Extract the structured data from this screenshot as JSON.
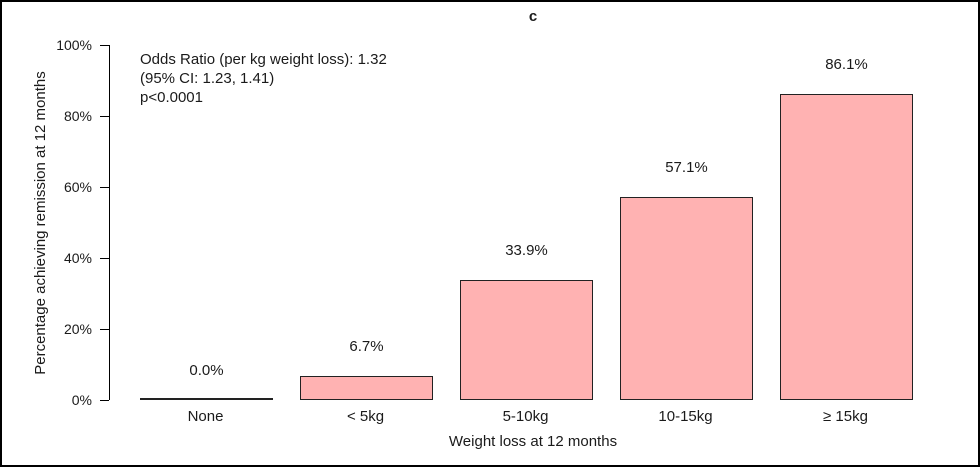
{
  "chart_data": {
    "type": "bar",
    "title": "c",
    "categories": [
      "None",
      "< 5kg",
      "5-10kg",
      "10-15kg",
      "≥ 15kg"
    ],
    "values": [
      0.0,
      6.7,
      33.9,
      57.1,
      86.1
    ],
    "value_labels": [
      "0.0%",
      "6.7%",
      "33.9%",
      "57.1%",
      "86.1%"
    ],
    "xlabel": "Weight loss at 12 months",
    "ylabel": "Percentage achieving remission at 12 months",
    "ylim": [
      0,
      100
    ],
    "yticks": [
      0,
      20,
      40,
      60,
      80,
      100
    ],
    "ytick_labels": [
      "0%",
      "20%",
      "40%",
      "60%",
      "80%",
      "100%"
    ],
    "grid": false,
    "legend": false,
    "annotations": [
      "Odds Ratio (per kg weight loss): 1.32",
      "(95% CI: 1.23, 1.41)",
      "p<0.0001"
    ],
    "colors": {
      "bar_fill": "#ffb2b2",
      "bar_border": "#222222",
      "axis": "#000000",
      "text": "#1a1a1a",
      "background": "#ffffff"
    }
  }
}
